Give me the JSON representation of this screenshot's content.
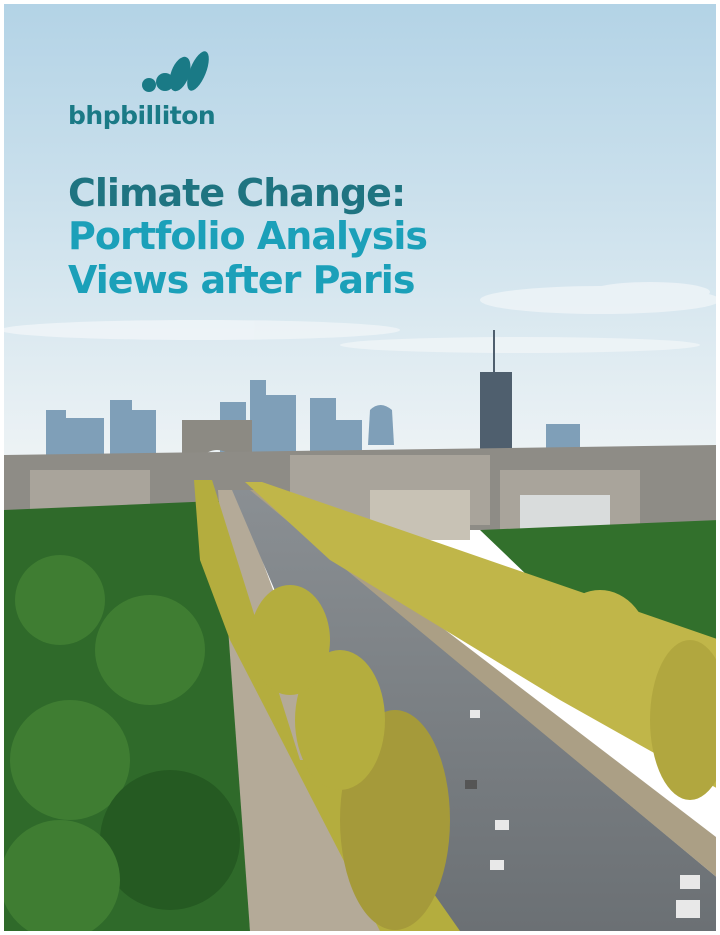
{
  "logo": {
    "name": "bhpbilliton"
  },
  "title": {
    "lines": [
      "Climate Change:",
      "Portfolio Analysis",
      "Views after Paris"
    ]
  }
}
